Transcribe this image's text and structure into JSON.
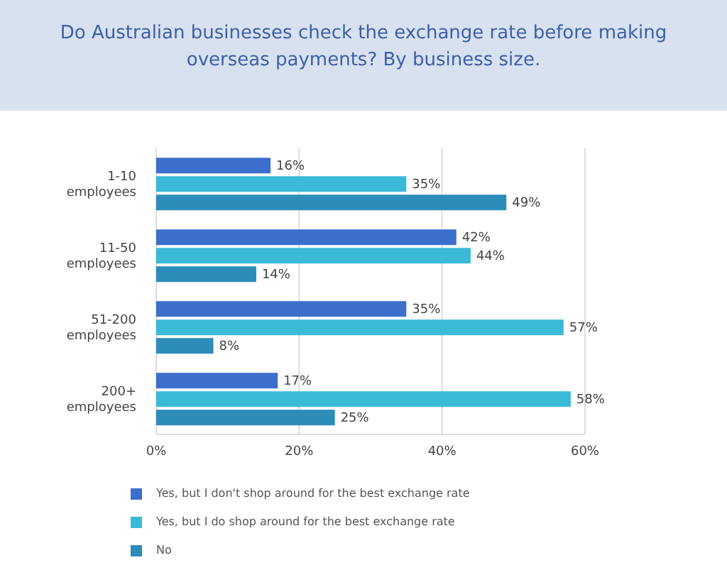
{
  "chart_data": {
    "type": "bar",
    "orientation": "horizontal",
    "title": "Do Australian businesses check the exchange rate before making overseas payments? By business size.",
    "categories": [
      "1-10 employees",
      "11-50 employees",
      "51-200 employees",
      "200+ employees"
    ],
    "series": [
      {
        "name": "Yes, but I don't shop around for the best exchange rate",
        "color": "#3b6fcb",
        "values": [
          16,
          42,
          35,
          17
        ],
        "value_labels": [
          "16%",
          "42%",
          "35%",
          "17%"
        ]
      },
      {
        "name": "Yes, but I do shop around for the best exchange rate",
        "color": "#3bbad8",
        "values": [
          35,
          44,
          57,
          58
        ],
        "value_labels": [
          "35%",
          "44%",
          "57%",
          "58%"
        ]
      },
      {
        "name": "No",
        "color": "#2b8db8",
        "values": [
          49,
          14,
          8,
          25
        ],
        "value_labels": [
          "49%",
          "14%",
          "8%",
          "25%"
        ]
      }
    ],
    "xlim": [
      0,
      60
    ],
    "xticks": [
      {
        "value": 0,
        "label": "0%"
      },
      {
        "value": 20,
        "label": "20%"
      },
      {
        "value": 40,
        "label": "40%"
      },
      {
        "value": 60,
        "label": "60%"
      }
    ],
    "grid": "x",
    "legend": "bottom"
  }
}
